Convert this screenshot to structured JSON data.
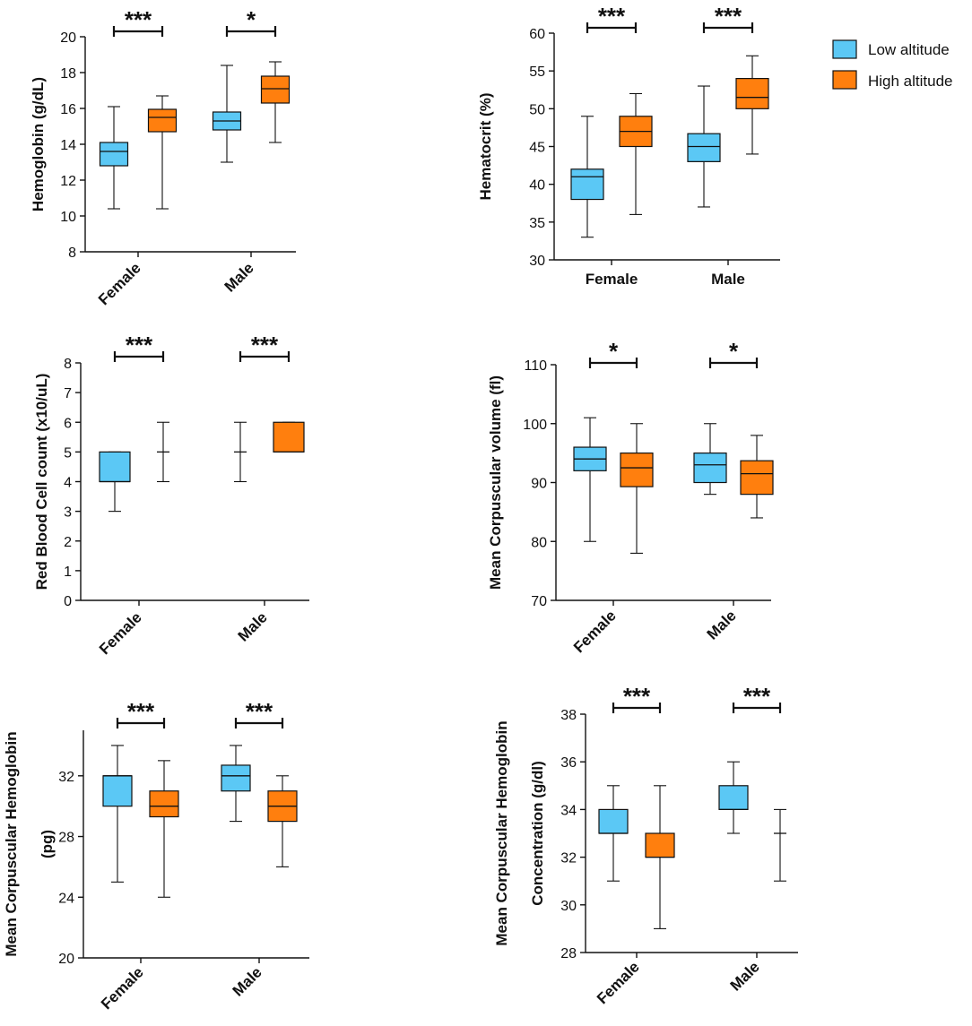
{
  "legend": [
    {
      "label": "Low altitude",
      "color": "#5bc8f5"
    },
    {
      "label": "High altitude",
      "color": "#ff7f0e"
    }
  ],
  "chart_data": [
    {
      "type": "box",
      "id": "hemoglobin",
      "ylabel": "Hemoglobin (g/dL)",
      "ylim": [
        8,
        20
      ],
      "yticks": [
        8,
        10,
        12,
        14,
        16,
        18,
        20
      ],
      "ytick_labels": [
        "8",
        "10",
        "12",
        "14",
        "16",
        "18",
        "20"
      ],
      "categories": [
        "Female",
        "Male"
      ],
      "xlabels_rotated": true,
      "series": [
        {
          "name": "Low altitude",
          "boxes": [
            {
              "min": 10.4,
              "q1": 12.8,
              "median": 13.6,
              "q3": 14.1,
              "max": 16.1
            },
            {
              "min": 13.0,
              "q1": 14.8,
              "median": 15.3,
              "q3": 15.8,
              "max": 18.4
            }
          ]
        },
        {
          "name": "High altitude",
          "boxes": [
            {
              "min": 10.4,
              "q1": 14.7,
              "median": 15.5,
              "q3": 15.95,
              "max": 16.7
            },
            {
              "min": 14.1,
              "q1": 16.3,
              "median": 17.1,
              "q3": 17.8,
              "max": 18.6
            }
          ]
        }
      ],
      "significance": [
        "***",
        "*"
      ]
    },
    {
      "type": "box",
      "id": "hematocrit",
      "ylabel": "Hematocrit (%)",
      "ylim": [
        30,
        60
      ],
      "yticks": [
        30,
        35,
        40,
        45,
        50,
        55,
        60
      ],
      "ytick_labels": [
        "30",
        "35",
        "40",
        "45",
        "50",
        "55",
        "60"
      ],
      "categories": [
        "Female",
        "Male"
      ],
      "xlabels_rotated": false,
      "series": [
        {
          "name": "Low altitude",
          "boxes": [
            {
              "min": 33,
              "q1": 38,
              "median": 41,
              "q3": 42,
              "max": 49
            },
            {
              "min": 37,
              "q1": 43,
              "median": 45,
              "q3": 46.7,
              "max": 53
            }
          ]
        },
        {
          "name": "High altitude",
          "boxes": [
            {
              "min": 36,
              "q1": 45,
              "median": 47,
              "q3": 49,
              "max": 52
            },
            {
              "min": 44,
              "q1": 50,
              "median": 51.5,
              "q3": 54,
              "max": 57
            }
          ]
        }
      ],
      "significance": [
        "***",
        "***"
      ]
    },
    {
      "type": "box",
      "id": "rbc",
      "ylabel": "Red Blood Cell count (x10/uL)",
      "ylim": [
        0,
        8
      ],
      "yticks": [
        0,
        1,
        2,
        3,
        4,
        5,
        6,
        7,
        8
      ],
      "ytick_labels": [
        "0",
        "1",
        "2",
        "3",
        "4",
        "5",
        "6",
        "7",
        "8"
      ],
      "categories": [
        "Female",
        "Male"
      ],
      "xlabels_rotated": true,
      "series": [
        {
          "name": "Low altitude",
          "boxes": [
            {
              "min": 3,
              "q1": 4,
              "median": 4,
              "q3": 5,
              "max": 5
            },
            {
              "min": 4,
              "q1": 5,
              "median": 5,
              "q3": 5,
              "max": 6
            }
          ]
        },
        {
          "name": "High altitude",
          "boxes": [
            {
              "min": 4,
              "q1": 5,
              "median": 5,
              "q3": 5,
              "max": 6
            },
            {
              "min": 5,
              "q1": 5,
              "median": 5,
              "q3": 6,
              "max": 6
            }
          ]
        }
      ],
      "significance": [
        "***",
        "***"
      ]
    },
    {
      "type": "box",
      "id": "mcv",
      "ylabel": "Mean Corpuscular volume (fl)",
      "ylim": [
        70,
        110
      ],
      "yticks": [
        70,
        80,
        90,
        100,
        110
      ],
      "ytick_labels": [
        "70",
        "80",
        "90",
        "100",
        "110"
      ],
      "categories": [
        "Female",
        "Male"
      ],
      "xlabels_rotated": true,
      "series": [
        {
          "name": "Low altitude",
          "boxes": [
            {
              "min": 80,
              "q1": 92,
              "median": 94,
              "q3": 96,
              "max": 101
            },
            {
              "min": 88,
              "q1": 90,
              "median": 93,
              "q3": 95,
              "max": 100
            }
          ]
        },
        {
          "name": "High altitude",
          "boxes": [
            {
              "min": 78,
              "q1": 89.3,
              "median": 92.5,
              "q3": 95,
              "max": 100
            },
            {
              "min": 84,
              "q1": 88,
              "median": 91.5,
              "q3": 93.7,
              "max": 98
            }
          ]
        }
      ],
      "significance": [
        "*",
        "*"
      ]
    },
    {
      "type": "box",
      "id": "mch",
      "ylabel": "Mean Corpuscular Hemoglobin\n(pg)",
      "ylim": [
        20,
        35
      ],
      "yticks": [
        20,
        24,
        28,
        32
      ],
      "ytick_labels": [
        "20",
        "24",
        "28",
        "32"
      ],
      "categories": [
        "Female",
        "Male"
      ],
      "xlabels_rotated": true,
      "series": [
        {
          "name": "Low altitude",
          "boxes": [
            {
              "min": 25,
              "q1": 30,
              "median": 32,
              "q3": 32,
              "max": 34
            },
            {
              "min": 29,
              "q1": 31,
              "median": 32,
              "q3": 32.7,
              "max": 34
            }
          ]
        },
        {
          "name": "High altitude",
          "boxes": [
            {
              "min": 24,
              "q1": 29.3,
              "median": 30,
              "q3": 31,
              "max": 33
            },
            {
              "min": 26,
              "q1": 29,
              "median": 30,
              "q3": 31,
              "max": 32
            }
          ]
        }
      ],
      "significance": [
        "***",
        "***"
      ]
    },
    {
      "type": "box",
      "id": "mchc",
      "ylabel": "Mean Corpuscular Hemoglobin\nConcentration (g/dl)",
      "ylim": [
        28,
        38
      ],
      "yticks": [
        28,
        30,
        32,
        34,
        36,
        38
      ],
      "ytick_labels": [
        "28",
        "30",
        "32",
        "34",
        "36",
        "38"
      ],
      "categories": [
        "Female",
        "Male"
      ],
      "xlabels_rotated": true,
      "series": [
        {
          "name": "Low altitude",
          "boxes": [
            {
              "min": 31,
              "q1": 33,
              "median": 33,
              "q3": 34,
              "max": 35
            },
            {
              "min": 33,
              "q1": 34,
              "median": 34,
              "q3": 35,
              "max": 36
            }
          ]
        },
        {
          "name": "High altitude",
          "boxes": [
            {
              "min": 29,
              "q1": 32,
              "median": 32,
              "q3": 33,
              "max": 35
            },
            {
              "min": 31,
              "q1": 33,
              "median": 33,
              "q3": 33,
              "max": 34
            }
          ]
        }
      ],
      "significance": [
        "***",
        "***"
      ]
    }
  ]
}
